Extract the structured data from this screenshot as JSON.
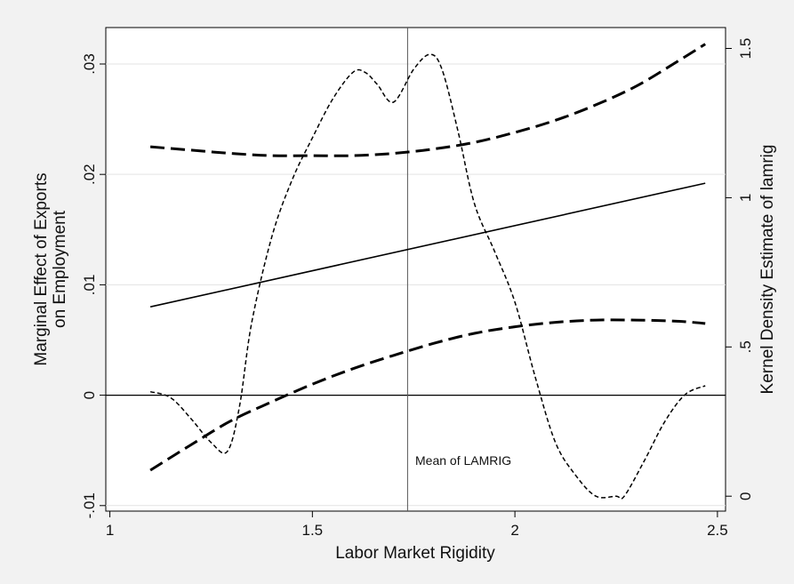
{
  "chart_data": {
    "type": "line",
    "title": "",
    "xlabel": "Labor Market Rigidity",
    "ylabel_lines": [
      "Marginal Effect of Exports",
      "on Employment"
    ],
    "y2label": "Kernel Density Estimate of lamrig",
    "xlim": [
      0.99,
      2.52
    ],
    "ylim": [
      -0.0105,
      0.0333
    ],
    "y2lim": [
      -0.05,
      1.57
    ],
    "xticks": [
      1,
      1.5,
      2,
      2.5
    ],
    "xtick_labels": [
      "1",
      "1.5",
      "2",
      "2.5"
    ],
    "yticks": [
      -0.01,
      0,
      0.01,
      0.02,
      0.03
    ],
    "ytick_labels": [
      "-.01",
      "0",
      ".01",
      ".02",
      ".03"
    ],
    "y2ticks": [
      0,
      0.5,
      1,
      1.5
    ],
    "y2tick_labels": [
      "0",
      ".5",
      "1",
      "1.5"
    ],
    "grid": true,
    "reference_lines": {
      "horizontal": {
        "y": 0
      },
      "vertical": {
        "x": 1.735,
        "label": "Mean of LAMRIG"
      }
    },
    "series": [
      {
        "role": "marginal-effect",
        "axis": "left",
        "style": "solid",
        "x": [
          1.1,
          2.47
        ],
        "y": [
          0.008,
          0.0192
        ]
      },
      {
        "role": "upper-ci",
        "axis": "left",
        "style": "dashed",
        "x": [
          1.1,
          1.2,
          1.3,
          1.4,
          1.5,
          1.6,
          1.7,
          1.8,
          1.9,
          2.0,
          2.1,
          2.2,
          2.3,
          2.4,
          2.47
        ],
        "y": [
          0.0225,
          0.0222,
          0.0219,
          0.0217,
          0.0217,
          0.0217,
          0.0219,
          0.0223,
          0.0229,
          0.0238,
          0.0249,
          0.0263,
          0.028,
          0.0302,
          0.0318
        ]
      },
      {
        "role": "lower-ci",
        "axis": "left",
        "style": "dashed",
        "x": [
          1.1,
          1.2,
          1.3,
          1.4,
          1.5,
          1.6,
          1.7,
          1.8,
          1.9,
          2.0,
          2.1,
          2.2,
          2.3,
          2.4,
          2.47
        ],
        "y": [
          -0.0068,
          -0.0045,
          -0.0023,
          -0.0006,
          0.001,
          0.0024,
          0.0036,
          0.0047,
          0.0056,
          0.0062,
          0.0066,
          0.0068,
          0.0068,
          0.0067,
          0.0065
        ]
      },
      {
        "role": "kernel-density",
        "axis": "right",
        "style": "dotted",
        "x": [
          1.1,
          1.15,
          1.2,
          1.25,
          1.29,
          1.32,
          1.35,
          1.4,
          1.45,
          1.5,
          1.55,
          1.6,
          1.63,
          1.66,
          1.7,
          1.75,
          1.79,
          1.82,
          1.86,
          1.9,
          1.95,
          2.0,
          2.05,
          2.1,
          2.15,
          2.2,
          2.25,
          2.27,
          2.32,
          2.37,
          2.42,
          2.47
        ],
        "y": [
          0.35,
          0.33,
          0.26,
          0.18,
          0.15,
          0.3,
          0.58,
          0.87,
          1.06,
          1.2,
          1.33,
          1.42,
          1.42,
          1.38,
          1.32,
          1.43,
          1.48,
          1.43,
          1.22,
          0.98,
          0.82,
          0.65,
          0.4,
          0.18,
          0.07,
          0.0,
          0.0,
          0.0,
          0.12,
          0.25,
          0.34,
          0.37
        ]
      }
    ]
  }
}
